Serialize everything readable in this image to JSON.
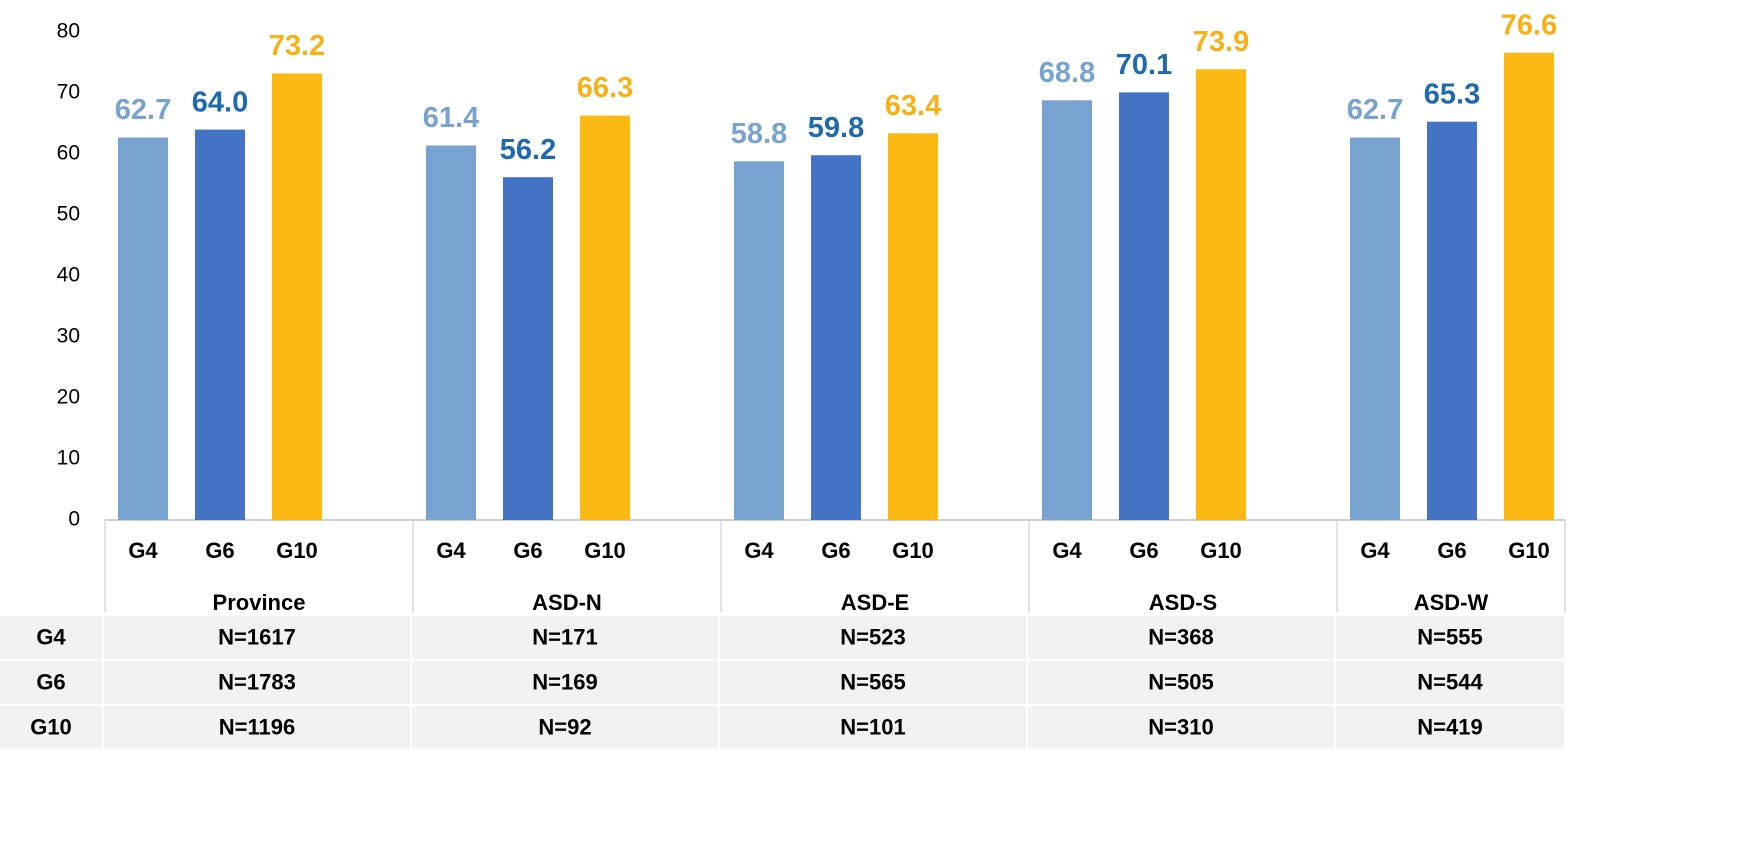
{
  "chart_data": {
    "type": "bar",
    "categories": [
      "Province",
      "ASD-N",
      "ASD-E",
      "ASD-S",
      "ASD-W"
    ],
    "series": [
      {
        "name": "G4",
        "color": "#78a3d0",
        "label_color": "#78a3d0",
        "values": [
          62.7,
          61.4,
          58.8,
          68.8,
          62.7
        ]
      },
      {
        "name": "G6",
        "color": "#4472c4",
        "label_color": "#1f69ae",
        "values": [
          64,
          56.2,
          59.8,
          70.1,
          65.3
        ],
        "value_labels": [
          "64.0",
          "56.2",
          "59.8",
          "70.1",
          "65.3"
        ]
      },
      {
        "name": "G10",
        "color": "#fdb913",
        "label_color": "#f7b116",
        "values": [
          73.2,
          66.3,
          63.4,
          73.9,
          76.6
        ]
      }
    ],
    "ylim": [
      0,
      80
    ],
    "yticks": [
      0,
      10,
      20,
      30,
      40,
      50,
      60,
      70,
      80
    ],
    "grid": false
  },
  "table": {
    "rows": [
      [
        "G4",
        "N=1617",
        "N=171",
        "N=523",
        "N=368",
        "N=555"
      ],
      [
        "G6",
        "N=1783",
        "N=169",
        "N=565",
        "N=505",
        "N=544"
      ],
      [
        "G10",
        "N=1196",
        "N=92",
        "N=101",
        "N=310",
        "N=419"
      ]
    ]
  }
}
